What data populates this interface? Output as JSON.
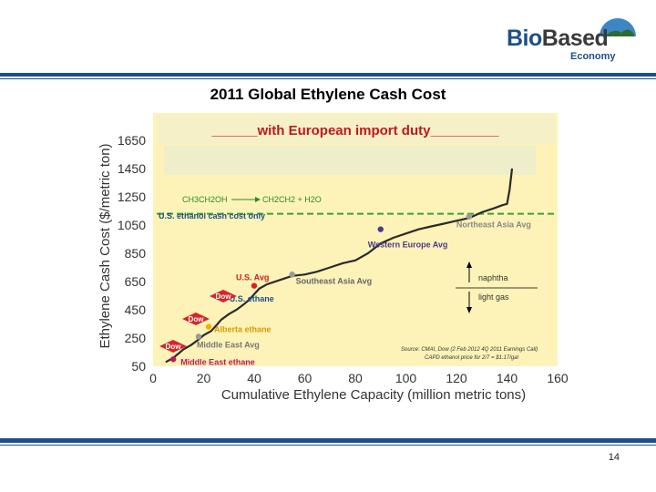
{
  "logo": {
    "brand_bio": "Bio",
    "brand_based": "Based",
    "sub": "Economy"
  },
  "slide": {
    "title": "2011 Global Ethylene  Cash Cost",
    "page": "14"
  },
  "chart_data": {
    "type": "line",
    "subtitle": "______with European import duty_________",
    "xlabel": "Cumulative Ethylene Capacity (million metric tons)",
    "ylabel": "Ethylene Cash Cost ($/metric ton)",
    "xlim": [
      0,
      160
    ],
    "ylim": [
      50,
      1650
    ],
    "xticks": [
      "0",
      "20",
      "40",
      "60",
      "80",
      "100",
      "120",
      "140",
      "160"
    ],
    "yticks": [
      "1650",
      "1450",
      "1250",
      "1050",
      "850",
      "650",
      "450",
      "250",
      "50"
    ],
    "tick_values": [
      1650,
      1450,
      1250,
      1050,
      850,
      650,
      450,
      250,
      50
    ],
    "ethanol_line_value": 1130,
    "series": [
      {
        "x": [
          5,
          8,
          10,
          12,
          15,
          18,
          20,
          23,
          25,
          27,
          30,
          33,
          36,
          38,
          40,
          42,
          45,
          50,
          55,
          60,
          65,
          70,
          75,
          80,
          85,
          90,
          95,
          100,
          105,
          110,
          115,
          120,
          125,
          130,
          135,
          138,
          140,
          141,
          142
        ],
        "y": [
          80,
          110,
          140,
          170,
          200,
          240,
          270,
          300,
          340,
          380,
          420,
          450,
          490,
          520,
          560,
          600,
          630,
          660,
          690,
          700,
          720,
          750,
          780,
          800,
          850,
          920,
          960,
          990,
          1020,
          1040,
          1060,
          1080,
          1100,
          1140,
          1170,
          1190,
          1200,
          1300,
          1450
        ]
      }
    ],
    "points": [
      {
        "x": 8,
        "y": 100,
        "color": "#c2185b",
        "label": "Middle East ethane"
      },
      {
        "x": 18,
        "y": 260,
        "color": "#999999",
        "label": "Middle East Avg"
      },
      {
        "x": 22,
        "y": 330,
        "color": "#f0b400",
        "label": "Alberta ethane"
      },
      {
        "x": 28,
        "y": 560,
        "color": "#1d4f8a",
        "label": "U.S. ethane"
      },
      {
        "x": 40,
        "y": 620,
        "color": "#e02020",
        "label": "U.S. Avg"
      },
      {
        "x": 55,
        "y": 700,
        "color": "#999999",
        "label": "Southeast Asia Avg"
      },
      {
        "x": 90,
        "y": 1020,
        "color": "#4a3a8a",
        "label": "Western Europe Avg"
      },
      {
        "x": 125,
        "y": 1110,
        "color": "#999999",
        "label": "Northeast Asia Avg"
      }
    ],
    "annotations": {
      "ethanol_label": "U.S. ethanol cash cost only",
      "reaction_left": "CH3CH2OH",
      "reaction_right": "CH2CH2 + H2O",
      "naphtha": "naphtha",
      "light_gas": "light gas",
      "dow": [
        "Dow",
        "Dow",
        "Dow"
      ],
      "source_1": "Source: CMAI, Dow (2 Feb 2012 4Q 2011 Earnings Call)",
      "source_2": "CAPD ethanol price for 2/7 = $1.17/gal"
    },
    "colors": {
      "background": "#fdf3b8",
      "band": "#f2ecc8",
      "curve": "#2a2a2a",
      "dash": "#3aa03a"
    }
  }
}
